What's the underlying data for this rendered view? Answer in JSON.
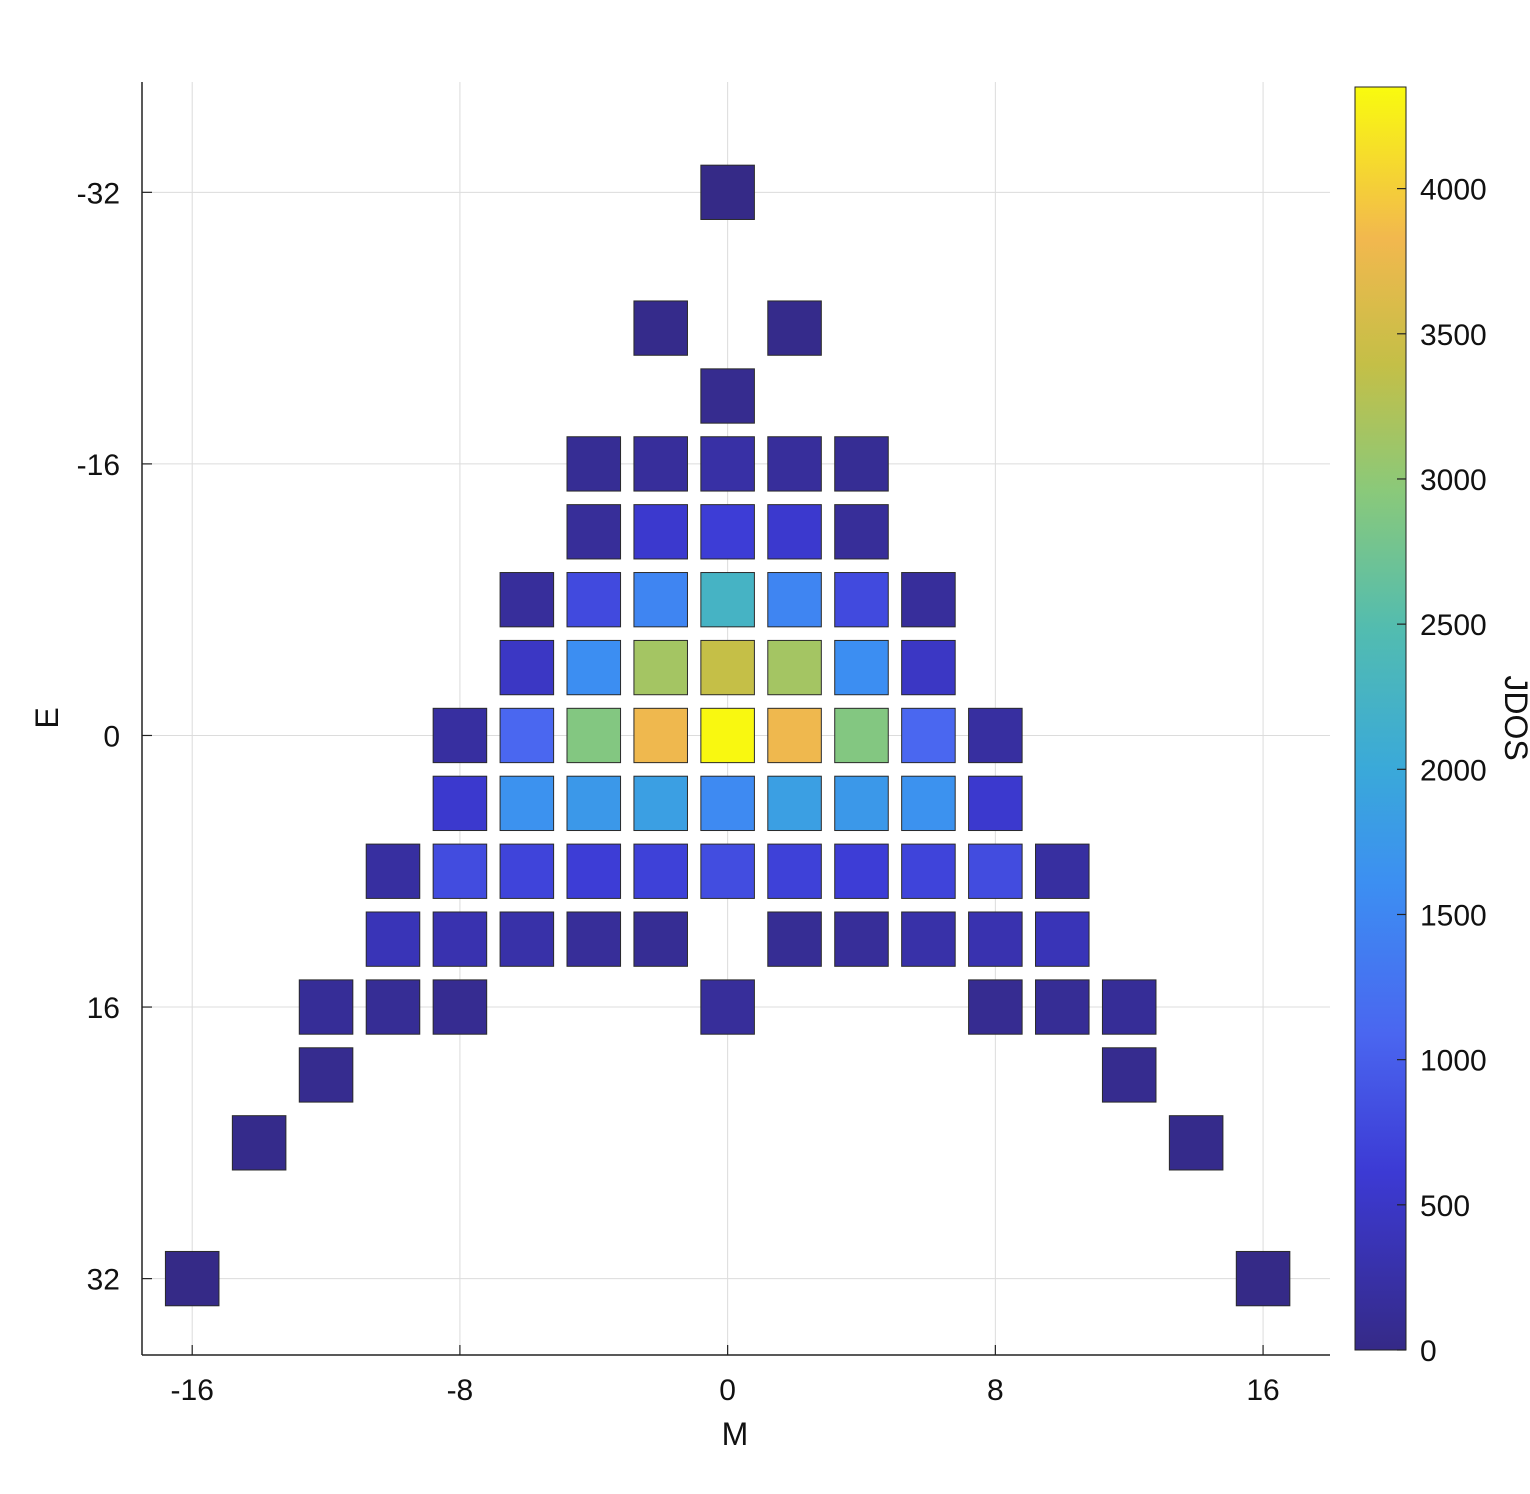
{
  "chart_data": {
    "type": "heatmap",
    "xlabel": "M",
    "ylabel": "E",
    "colorbar_label": "JDOS",
    "xlim": [
      -17.5,
      18
    ],
    "ylim": [
      -38.5,
      36.5
    ],
    "y_reversed": true,
    "grid": true,
    "xticks": [
      -16,
      -8,
      0,
      8,
      16
    ],
    "yticks": [
      -32,
      -16,
      0,
      16,
      32
    ],
    "colorbar_range": [
      0,
      4350
    ],
    "colorbar_ticks": [
      0,
      500,
      1000,
      1500,
      2000,
      2500,
      3000,
      3500,
      4000
    ],
    "colormap": "parula",
    "cell_size": {
      "m": 1.6,
      "e": 3.2
    },
    "cells": [
      {
        "m": 0,
        "e": -32,
        "v": 2
      },
      {
        "m": -2,
        "e": -24,
        "v": 32
      },
      {
        "m": 2,
        "e": -24,
        "v": 32
      },
      {
        "m": 0,
        "e": -20,
        "v": 64
      },
      {
        "m": -4,
        "e": -16,
        "v": 100
      },
      {
        "m": -2,
        "e": -16,
        "v": 160
      },
      {
        "m": 0,
        "e": -16,
        "v": 240
      },
      {
        "m": 2,
        "e": -16,
        "v": 160
      },
      {
        "m": 4,
        "e": -16,
        "v": 100
      },
      {
        "m": -4,
        "e": -12,
        "v": 140
      },
      {
        "m": -2,
        "e": -12,
        "v": 560
      },
      {
        "m": 0,
        "e": -12,
        "v": 640
      },
      {
        "m": 2,
        "e": -12,
        "v": 560
      },
      {
        "m": 4,
        "e": -12,
        "v": 140
      },
      {
        "m": -6,
        "e": -8,
        "v": 160
      },
      {
        "m": -4,
        "e": -8,
        "v": 780
      },
      {
        "m": -2,
        "e": -8,
        "v": 1480
      },
      {
        "m": 0,
        "e": -8,
        "v": 2250
      },
      {
        "m": 2,
        "e": -8,
        "v": 1480
      },
      {
        "m": 4,
        "e": -8,
        "v": 780
      },
      {
        "m": 6,
        "e": -8,
        "v": 160
      },
      {
        "m": -6,
        "e": -4,
        "v": 480
      },
      {
        "m": -4,
        "e": -4,
        "v": 1600
      },
      {
        "m": -2,
        "e": -4,
        "v": 3150
      },
      {
        "m": 0,
        "e": -4,
        "v": 3400
      },
      {
        "m": 2,
        "e": -4,
        "v": 3150
      },
      {
        "m": 4,
        "e": -4,
        "v": 1600
      },
      {
        "m": 6,
        "e": -4,
        "v": 480
      },
      {
        "m": -8,
        "e": 0,
        "v": 200
      },
      {
        "m": -6,
        "e": 0,
        "v": 1100
      },
      {
        "m": -4,
        "e": 0,
        "v": 2900
      },
      {
        "m": -2,
        "e": 0,
        "v": 3800
      },
      {
        "m": 0,
        "e": 0,
        "v": 4330
      },
      {
        "m": 2,
        "e": 0,
        "v": 3800
      },
      {
        "m": 4,
        "e": 0,
        "v": 2900
      },
      {
        "m": 6,
        "e": 0,
        "v": 1100
      },
      {
        "m": 8,
        "e": 0,
        "v": 200
      },
      {
        "m": -8,
        "e": 4,
        "v": 560
      },
      {
        "m": -6,
        "e": 4,
        "v": 1650
      },
      {
        "m": -4,
        "e": 4,
        "v": 1750
      },
      {
        "m": -2,
        "e": 4,
        "v": 1850
      },
      {
        "m": 0,
        "e": 4,
        "v": 1550
      },
      {
        "m": 2,
        "e": 4,
        "v": 1850
      },
      {
        "m": 4,
        "e": 4,
        "v": 1750
      },
      {
        "m": 6,
        "e": 4,
        "v": 1650
      },
      {
        "m": 8,
        "e": 4,
        "v": 560
      },
      {
        "m": -10,
        "e": 8,
        "v": 200
      },
      {
        "m": -8,
        "e": 8,
        "v": 800
      },
      {
        "m": -6,
        "e": 8,
        "v": 720
      },
      {
        "m": -4,
        "e": 8,
        "v": 640
      },
      {
        "m": -2,
        "e": 8,
        "v": 680
      },
      {
        "m": 0,
        "e": 8,
        "v": 820
      },
      {
        "m": 2,
        "e": 8,
        "v": 680
      },
      {
        "m": 4,
        "e": 8,
        "v": 640
      },
      {
        "m": 6,
        "e": 8,
        "v": 720
      },
      {
        "m": 8,
        "e": 8,
        "v": 800
      },
      {
        "m": 10,
        "e": 8,
        "v": 200
      },
      {
        "m": -10,
        "e": 12,
        "v": 380
      },
      {
        "m": -8,
        "e": 12,
        "v": 320
      },
      {
        "m": -6,
        "e": 12,
        "v": 260
      },
      {
        "m": -4,
        "e": 12,
        "v": 140
      },
      {
        "m": -2,
        "e": 12,
        "v": 100
      },
      {
        "m": 2,
        "e": 12,
        "v": 100
      },
      {
        "m": 4,
        "e": 12,
        "v": 140
      },
      {
        "m": 6,
        "e": 12,
        "v": 260
      },
      {
        "m": 8,
        "e": 12,
        "v": 320
      },
      {
        "m": 10,
        "e": 12,
        "v": 380
      },
      {
        "m": -12,
        "e": 16,
        "v": 130
      },
      {
        "m": -10,
        "e": 16,
        "v": 110
      },
      {
        "m": -8,
        "e": 16,
        "v": 80
      },
      {
        "m": 0,
        "e": 16,
        "v": 150
      },
      {
        "m": 8,
        "e": 16,
        "v": 80
      },
      {
        "m": 10,
        "e": 16,
        "v": 110
      },
      {
        "m": 12,
        "e": 16,
        "v": 130
      },
      {
        "m": -12,
        "e": 20,
        "v": 60
      },
      {
        "m": 12,
        "e": 20,
        "v": 60
      },
      {
        "m": -14,
        "e": 24,
        "v": 30
      },
      {
        "m": 14,
        "e": 24,
        "v": 30
      },
      {
        "m": -16,
        "e": 32,
        "v": 1
      },
      {
        "m": 16,
        "e": 32,
        "v": 1
      }
    ]
  }
}
